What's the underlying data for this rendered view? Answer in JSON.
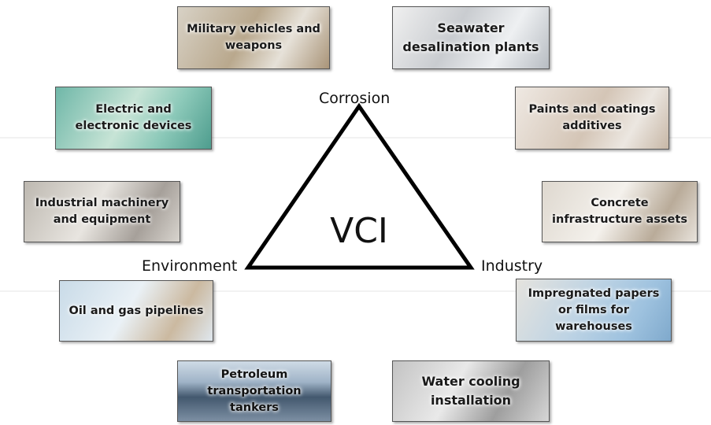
{
  "center": "VCI",
  "vertices": {
    "top": "Corrosion",
    "left": "Environment",
    "right": "Industry"
  },
  "nodes": [
    {
      "label": "Military vehicles and weapons"
    },
    {
      "label": "Seawater desalination plants"
    },
    {
      "label": "Electric and electronic devices"
    },
    {
      "label": "Paints and coatings additives"
    },
    {
      "label": "Industrial machinery and equipment"
    },
    {
      "label": "Concrete infrastructure assets"
    },
    {
      "label": "Oil and gas pipelines"
    },
    {
      "label": "Impregnated papers or films for warehouses"
    },
    {
      "label": "Petroleum transportation tankers"
    },
    {
      "label": "Water cooling installation"
    }
  ]
}
